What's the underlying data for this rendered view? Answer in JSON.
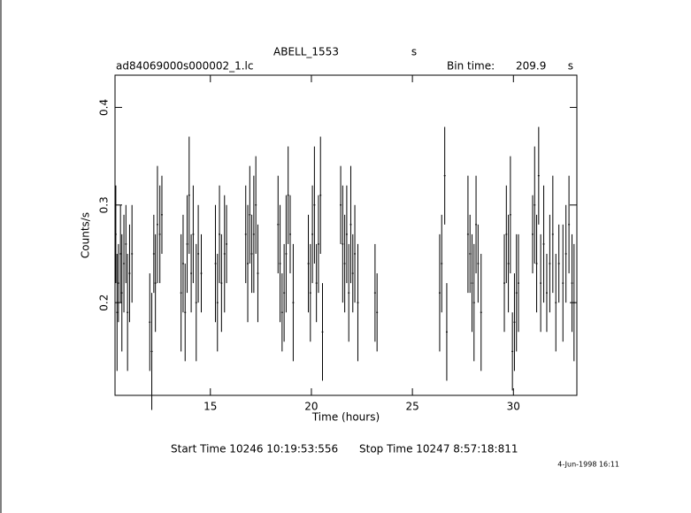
{
  "chart_data": {
    "type": "errorbar",
    "title": "ABELL_1553",
    "title_unit": "s",
    "file_name": "ad84069000s000002_1.lc",
    "bin_time_label": "Bin time:",
    "bin_time": 209.9,
    "bin_time_unit": "s",
    "x_label": "Time (hours)",
    "y_label": "Counts/s",
    "start_time": "Start Time 10246 10:19:53:556",
    "stop_time": "Stop Time 10247  8:57:18:811",
    "date_stamp": "4-Jun-1998 16:11",
    "xlim": [
      10.28,
      33.14
    ],
    "xticks": [
      15,
      20,
      25,
      30
    ],
    "ylim": [
      0.105,
      0.433
    ],
    "yticks": [
      0.2,
      0.3,
      0.4
    ],
    "color": "#000000",
    "x": [
      10.32,
      10.38,
      10.45,
      10.55,
      10.62,
      10.72,
      10.82,
      10.9,
      11.0,
      11.12,
      12.0,
      12.1,
      12.2,
      12.28,
      12.38,
      12.5,
      12.6,
      13.55,
      13.65,
      13.75,
      13.85,
      13.95,
      14.05,
      14.15,
      14.3,
      14.4,
      14.55,
      15.25,
      15.35,
      15.45,
      15.55,
      15.7,
      15.8,
      16.75,
      16.85,
      16.95,
      17.05,
      17.15,
      17.25,
      17.35,
      18.35,
      18.45,
      18.55,
      18.65,
      18.75,
      18.85,
      18.95,
      19.1,
      19.85,
      19.95,
      20.05,
      20.15,
      20.25,
      20.35,
      20.45,
      20.55,
      21.45,
      21.55,
      21.65,
      21.75,
      21.85,
      21.95,
      22.05,
      22.15,
      22.3,
      23.15,
      23.25,
      26.35,
      26.45,
      26.6,
      26.7,
      27.75,
      27.85,
      27.95,
      28.05,
      28.15,
      28.25,
      28.4,
      29.55,
      29.65,
      29.75,
      29.85,
      29.95,
      30.05,
      30.15,
      30.25,
      30.95,
      31.05,
      31.15,
      31.25,
      31.35,
      31.5,
      31.65,
      31.8,
      31.95,
      32.1,
      32.25,
      32.45,
      32.6,
      32.75,
      32.9,
      33.0
    ],
    "values": [
      0.27,
      0.19,
      0.22,
      0.25,
      0.21,
      0.24,
      0.26,
      0.19,
      0.23,
      0.25,
      0.18,
      0.15,
      0.25,
      0.22,
      0.28,
      0.27,
      0.29,
      0.21,
      0.24,
      0.19,
      0.26,
      0.31,
      0.23,
      0.27,
      0.2,
      0.25,
      0.23,
      0.24,
      0.2,
      0.27,
      0.22,
      0.25,
      0.26,
      0.27,
      0.24,
      0.29,
      0.25,
      0.27,
      0.3,
      0.23,
      0.28,
      0.24,
      0.19,
      0.21,
      0.25,
      0.31,
      0.27,
      0.2,
      0.24,
      0.21,
      0.27,
      0.3,
      0.22,
      0.26,
      0.31,
      0.17,
      0.3,
      0.26,
      0.24,
      0.27,
      0.21,
      0.28,
      0.23,
      0.25,
      0.2,
      0.21,
      0.19,
      0.21,
      0.24,
      0.33,
      0.17,
      0.27,
      0.25,
      0.22,
      0.2,
      0.28,
      0.24,
      0.19,
      0.22,
      0.27,
      0.24,
      0.29,
      0.15,
      0.18,
      0.21,
      0.22,
      0.27,
      0.3,
      0.24,
      0.33,
      0.22,
      0.26,
      0.21,
      0.24,
      0.27,
      0.2,
      0.24,
      0.22,
      0.25,
      0.28,
      0.22,
      0.2
    ],
    "errors": [
      0.05,
      0.06,
      0.04,
      0.05,
      0.06,
      0.05,
      0.04,
      0.06,
      0.05,
      0.05,
      0.05,
      0.06,
      0.04,
      0.05,
      0.06,
      0.05,
      0.04,
      0.06,
      0.05,
      0.05,
      0.05,
      0.06,
      0.04,
      0.05,
      0.06,
      0.05,
      0.04,
      0.06,
      0.05,
      0.05,
      0.05,
      0.06,
      0.04,
      0.05,
      0.06,
      0.05,
      0.04,
      0.06,
      0.05,
      0.05,
      0.05,
      0.06,
      0.04,
      0.05,
      0.06,
      0.05,
      0.04,
      0.06,
      0.05,
      0.05,
      0.05,
      0.06,
      0.04,
      0.05,
      0.06,
      0.05,
      0.04,
      0.06,
      0.05,
      0.05,
      0.05,
      0.06,
      0.04,
      0.05,
      0.06,
      0.05,
      0.04,
      0.06,
      0.05,
      0.05,
      0.05,
      0.06,
      0.04,
      0.05,
      0.06,
      0.05,
      0.04,
      0.06,
      0.05,
      0.05,
      0.05,
      0.06,
      0.04,
      0.05,
      0.06,
      0.05,
      0.04,
      0.06,
      0.05,
      0.05,
      0.05,
      0.06,
      0.04,
      0.05,
      0.06,
      0.05,
      0.04,
      0.06,
      0.05,
      0.05,
      0.05,
      0.06
    ]
  }
}
